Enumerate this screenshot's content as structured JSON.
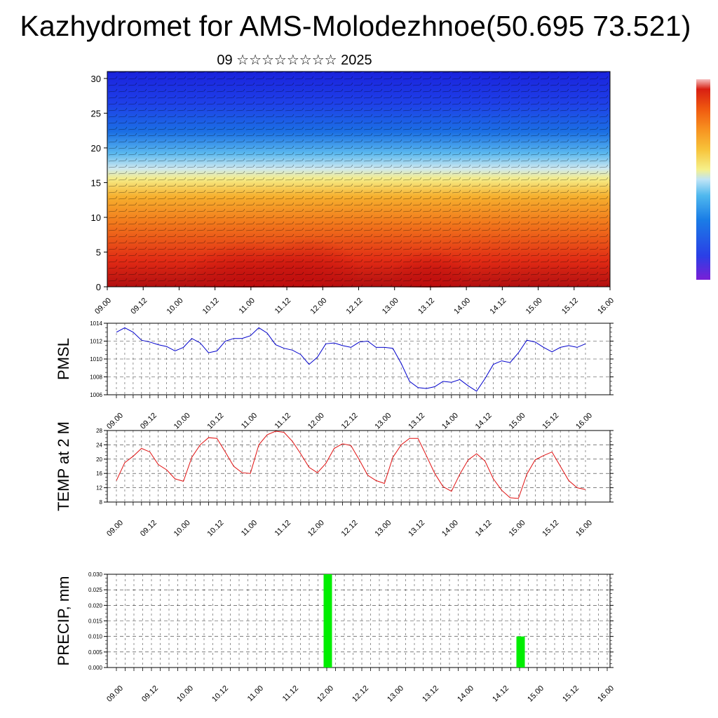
{
  "title": "Kazhydromet for AMS-Molodezhnoe(50.695 73.521)",
  "subtitle": "09 ☆☆☆☆☆☆☆☆ 2025",
  "time_ticks": [
    "09.00",
    "09.12",
    "10.00",
    "10.12",
    "11.00",
    "11.12",
    "12.00",
    "12.12",
    "13.00",
    "13.12",
    "14.00",
    "14.12",
    "15.00",
    "15.12",
    "16.00"
  ],
  "chart_data": [
    {
      "type": "heatmap",
      "title": "",
      "xlabel": "",
      "ylabel": "",
      "x": "time (3-hourly, 09.00 to 16.00)",
      "yticks": [
        "0",
        "5",
        "10",
        "15",
        "20",
        "25",
        "30"
      ],
      "ylim": [
        0,
        31
      ],
      "colorscale": [
        "#7a1fd6",
        "#2a3fe6",
        "#1a7de6",
        "#4fb8ee",
        "#bfe4f6",
        "#f6f08a",
        "#f7c33a",
        "#f79220",
        "#f05a10",
        "#d81f12",
        "#b20f10"
      ],
      "description_values": "warm (red) near surface during daytime maxima, transitioning to yellow near 15 and blue above 20"
    },
    {
      "type": "line",
      "title": "",
      "ylabel": "PMSL",
      "yticks": [
        "1006",
        "1008",
        "1010",
        "1012",
        "1014"
      ],
      "ylim": [
        1006,
        1014
      ],
      "grid": true,
      "color": "#0000cc",
      "x": [
        "09.00",
        "09.03",
        "09.06",
        "09.09",
        "09.12",
        "09.15",
        "09.18",
        "09.21",
        "10.00",
        "10.03",
        "10.06",
        "10.09",
        "10.12",
        "10.15",
        "10.18",
        "10.21",
        "11.00",
        "11.03",
        "11.06",
        "11.09",
        "11.12",
        "11.15",
        "11.18",
        "11.21",
        "12.00",
        "12.03",
        "12.06",
        "12.09",
        "12.12",
        "12.15",
        "12.18",
        "12.21",
        "13.00",
        "13.03",
        "13.06",
        "13.09",
        "13.12",
        "13.15",
        "13.18",
        "13.21",
        "14.00",
        "14.03",
        "14.06",
        "14.09",
        "14.12",
        "14.15",
        "14.18",
        "14.21",
        "15.00",
        "15.03",
        "15.06",
        "15.09",
        "15.12",
        "15.15",
        "15.18",
        "15.21",
        "16.00"
      ],
      "values": [
        1013.0,
        1013.5,
        1013.0,
        1012.1,
        1011.9,
        1011.6,
        1011.4,
        1010.9,
        1011.3,
        1012.3,
        1011.8,
        1010.7,
        1010.9,
        1012.0,
        1012.3,
        1012.3,
        1012.6,
        1013.5,
        1012.9,
        1011.6,
        1011.2,
        1011.0,
        1010.5,
        1009.4,
        1010.2,
        1011.7,
        1011.8,
        1011.5,
        1011.3,
        1011.9,
        1012.0,
        1011.3,
        1011.3,
        1011.2,
        1009.5,
        1007.5,
        1006.8,
        1006.7,
        1006.9,
        1007.5,
        1007.4,
        1007.7,
        1007.0,
        1006.4,
        1007.8,
        1009.4,
        1009.8,
        1009.6,
        1010.7,
        1012.1,
        1011.9,
        1011.3,
        1010.8,
        1011.3,
        1011.5,
        1011.3,
        1011.7
      ]
    },
    {
      "type": "line",
      "title": "",
      "ylabel": "TEMP at 2 M",
      "yticks": [
        "8",
        "12",
        "16",
        "20",
        "24",
        "28"
      ],
      "ylim": [
        8,
        28
      ],
      "grid": true,
      "color": "#e01010",
      "x": [
        "09.00",
        "09.03",
        "09.06",
        "09.09",
        "09.12",
        "09.15",
        "09.18",
        "09.21",
        "10.00",
        "10.03",
        "10.06",
        "10.09",
        "10.12",
        "10.15",
        "10.18",
        "10.21",
        "11.00",
        "11.03",
        "11.06",
        "11.09",
        "11.12",
        "11.15",
        "11.18",
        "11.21",
        "12.00",
        "12.03",
        "12.06",
        "12.09",
        "12.12",
        "12.15",
        "12.18",
        "12.21",
        "13.00",
        "13.03",
        "13.06",
        "13.09",
        "13.12",
        "13.15",
        "13.18",
        "13.21",
        "14.00",
        "14.03",
        "14.06",
        "14.09",
        "14.12",
        "14.15",
        "14.18",
        "14.21",
        "15.00",
        "15.03",
        "15.06",
        "15.09",
        "15.12",
        "15.15",
        "15.18",
        "15.21",
        "16.00"
      ],
      "values": [
        14.0,
        19.0,
        20.8,
        23.0,
        22.0,
        18.5,
        17.0,
        14.5,
        13.8,
        20.5,
        24.0,
        26.0,
        25.8,
        22.0,
        18.0,
        16.2,
        16.0,
        24.0,
        26.8,
        27.8,
        27.5,
        25.0,
        21.5,
        17.7,
        16.2,
        18.8,
        23.0,
        24.3,
        23.8,
        19.8,
        15.5,
        14.0,
        13.2,
        20.5,
        24.0,
        25.8,
        25.8,
        21.0,
        16.0,
        12.3,
        11.0,
        15.8,
        19.8,
        21.5,
        19.5,
        14.5,
        11.3,
        9.2,
        9.0,
        15.8,
        19.8,
        21.0,
        22.0,
        18.0,
        14.0,
        12.0,
        11.5
      ]
    },
    {
      "type": "bar",
      "title": "",
      "ylabel": "PRECIP, mm",
      "yticks": [
        "0.000",
        "0.005",
        "0.010",
        "0.015",
        "0.020",
        "0.025",
        "0.030"
      ],
      "ylim": [
        0,
        0.03
      ],
      "grid": true,
      "color": "#00ee00",
      "categories": [
        "11.21",
        "14.15"
      ],
      "values": [
        0.03,
        0.01
      ]
    }
  ]
}
